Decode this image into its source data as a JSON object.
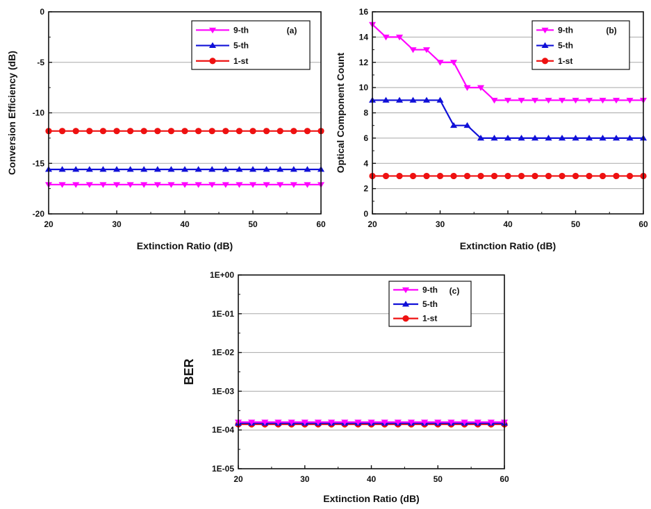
{
  "figure": {
    "panels": [
      {
        "id": "a",
        "panel_label": "(a)"
      },
      {
        "id": "b",
        "panel_label": "(b)"
      },
      {
        "id": "c",
        "panel_label": "(c)"
      }
    ]
  },
  "colors": {
    "9th": "#ff00ff",
    "5th": "#1010d8",
    "1st": "#ee1111",
    "grid": "#a8a8a8",
    "axis": "#111111"
  },
  "chart_data": [
    {
      "type": "line",
      "panel": "a",
      "title": "",
      "xlabel": "Extinction Ratio (dB)",
      "ylabel": "Conversion Efficiency (dB)",
      "xlim": [
        20,
        60
      ],
      "ylim": [
        -20,
        0
      ],
      "xticks": [
        "20",
        "30",
        "40",
        "50",
        "60"
      ],
      "yticks": [
        "-20",
        "-15",
        "-10",
        "-5",
        "0"
      ],
      "ytick_values": [
        -20,
        -15,
        -10,
        -5,
        0
      ],
      "grid": "horizontal",
      "legend_position": "top-right",
      "x": [
        20,
        22,
        24,
        26,
        28,
        30,
        32,
        34,
        36,
        38,
        40,
        42,
        44,
        46,
        48,
        50,
        52,
        54,
        56,
        58,
        60
      ],
      "series": [
        {
          "name": "9-th",
          "marker": "triangle-down",
          "color": "#ff00ff",
          "values": [
            -17.1,
            -17.1,
            -17.1,
            -17.1,
            -17.1,
            -17.1,
            -17.1,
            -17.1,
            -17.1,
            -17.1,
            -17.1,
            -17.1,
            -17.1,
            -17.1,
            -17.1,
            -17.1,
            -17.1,
            -17.1,
            -17.1,
            -17.1,
            -17.1
          ]
        },
        {
          "name": "5-th",
          "marker": "triangle-up",
          "color": "#1010d8",
          "values": [
            -15.6,
            -15.6,
            -15.6,
            -15.6,
            -15.6,
            -15.6,
            -15.6,
            -15.6,
            -15.6,
            -15.6,
            -15.6,
            -15.6,
            -15.6,
            -15.6,
            -15.6,
            -15.6,
            -15.6,
            -15.6,
            -15.6,
            -15.6,
            -15.6
          ]
        },
        {
          "name": "1-st",
          "marker": "circle",
          "color": "#ee1111",
          "values": [
            -11.8,
            -11.8,
            -11.8,
            -11.8,
            -11.8,
            -11.8,
            -11.8,
            -11.8,
            -11.8,
            -11.8,
            -11.8,
            -11.8,
            -11.8,
            -11.8,
            -11.8,
            -11.8,
            -11.8,
            -11.8,
            -11.8,
            -11.8,
            -11.8
          ]
        }
      ]
    },
    {
      "type": "line",
      "panel": "b",
      "title": "",
      "xlabel": "Extinction Ratio (dB)",
      "ylabel": "Optical Component Count",
      "xlim": [
        20,
        60
      ],
      "ylim": [
        0,
        16
      ],
      "xticks": [
        "20",
        "30",
        "40",
        "50",
        "60"
      ],
      "yticks": [
        "0",
        "2",
        "4",
        "6",
        "8",
        "10",
        "12",
        "14",
        "16"
      ],
      "ytick_values": [
        0,
        2,
        4,
        6,
        8,
        10,
        12,
        14,
        16
      ],
      "grid": "horizontal",
      "legend_position": "top-right",
      "x": [
        20,
        22,
        24,
        26,
        28,
        30,
        32,
        34,
        36,
        38,
        40,
        42,
        44,
        46,
        48,
        50,
        52,
        54,
        56,
        58,
        60
      ],
      "series": [
        {
          "name": "9-th",
          "marker": "triangle-down",
          "color": "#ff00ff",
          "values": [
            15,
            14,
            14,
            13,
            13,
            12,
            12,
            10,
            10,
            9,
            9,
            9,
            9,
            9,
            9,
            9,
            9,
            9,
            9,
            9,
            9
          ]
        },
        {
          "name": "5-th",
          "marker": "triangle-up",
          "color": "#1010d8",
          "values": [
            9,
            9,
            9,
            9,
            9,
            9,
            7,
            7,
            6,
            6,
            6,
            6,
            6,
            6,
            6,
            6,
            6,
            6,
            6,
            6,
            6
          ]
        },
        {
          "name": "1-st",
          "marker": "circle",
          "color": "#ee1111",
          "values": [
            3,
            3,
            3,
            3,
            3,
            3,
            3,
            3,
            3,
            3,
            3,
            3,
            3,
            3,
            3,
            3,
            3,
            3,
            3,
            3,
            3
          ]
        }
      ]
    },
    {
      "type": "line",
      "panel": "c",
      "title": "",
      "xlabel": "Extinction Ratio (dB)",
      "ylabel": "BER",
      "yscale": "log",
      "xlim": [
        20,
        60
      ],
      "ylim": [
        1e-05,
        1
      ],
      "xticks": [
        "20",
        "30",
        "40",
        "50",
        "60"
      ],
      "yticks": [
        "1E-05",
        "1E-04",
        "1E-03",
        "1E-02",
        "1E-01",
        "1E+00"
      ],
      "ytick_values": [
        1e-05,
        0.0001,
        0.001,
        0.01,
        0.1,
        1
      ],
      "grid": "horizontal",
      "legend_position": "top-right",
      "x": [
        20,
        22,
        24,
        26,
        28,
        30,
        32,
        34,
        36,
        38,
        40,
        42,
        44,
        46,
        48,
        50,
        52,
        54,
        56,
        58,
        60
      ],
      "series": [
        {
          "name": "9-th",
          "marker": "triangle-down",
          "color": "#ff00ff",
          "values": [
            0.00016,
            0.00016,
            0.00016,
            0.00016,
            0.00016,
            0.00016,
            0.00016,
            0.00016,
            0.00016,
            0.00016,
            0.00016,
            0.00016,
            0.00016,
            0.00016,
            0.00016,
            0.00016,
            0.00016,
            0.00016,
            0.00016,
            0.00016,
            0.00016
          ]
        },
        {
          "name": "5-th",
          "marker": "triangle-up",
          "color": "#1010d8",
          "values": [
            0.00015,
            0.00015,
            0.00015,
            0.00015,
            0.00015,
            0.00015,
            0.00015,
            0.00015,
            0.00015,
            0.00015,
            0.00015,
            0.00015,
            0.00015,
            0.00015,
            0.00015,
            0.00015,
            0.00015,
            0.00015,
            0.00015,
            0.00015,
            0.00015
          ]
        },
        {
          "name": "1-st",
          "marker": "circle",
          "color": "#ee1111",
          "values": [
            0.00014,
            0.00014,
            0.00014,
            0.00014,
            0.00014,
            0.00014,
            0.00014,
            0.00014,
            0.00014,
            0.00014,
            0.00014,
            0.00014,
            0.00014,
            0.00014,
            0.00014,
            0.00014,
            0.00014,
            0.00014,
            0.00014,
            0.00014,
            0.00014
          ]
        }
      ]
    }
  ]
}
